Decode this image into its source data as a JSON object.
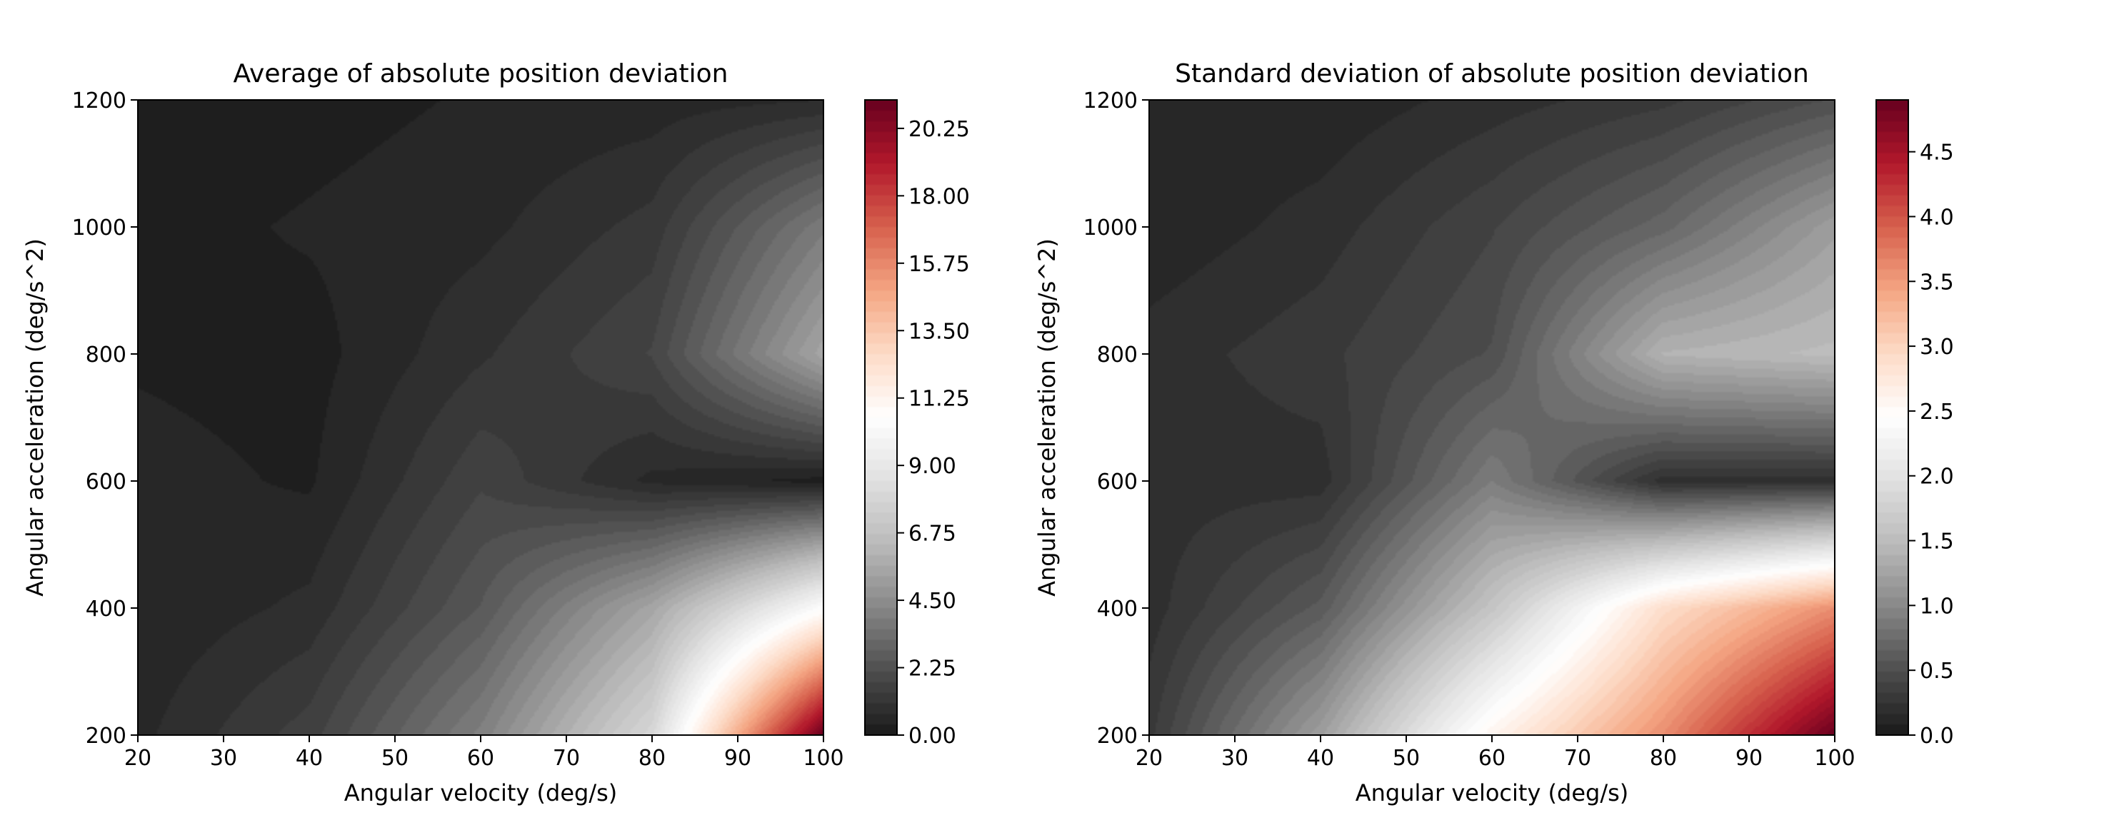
{
  "colormap": {
    "name": "RdGy_r",
    "stops": [
      "#1a1a1a",
      "#4d4d4d",
      "#878787",
      "#bababa",
      "#e0e0e0",
      "#ffffff",
      "#fddbc7",
      "#f4a582",
      "#d6604d",
      "#b2182b",
      "#67001f"
    ]
  },
  "chart_data": [
    {
      "type": "heatmap",
      "title": "Average of absolute position deviation",
      "xlabel": "Angular velocity (deg/s)",
      "ylabel": "Angular acceleration (deg/s^2)",
      "x": [
        20,
        40,
        60,
        80,
        100
      ],
      "y": [
        200,
        400,
        600,
        800,
        1000,
        1200
      ],
      "xlim": [
        20,
        100
      ],
      "ylim": [
        200,
        1200
      ],
      "xticks": [
        "20",
        "30",
        "40",
        "50",
        "60",
        "70",
        "80",
        "90",
        "100"
      ],
      "xtick_values": [
        20,
        30,
        40,
        50,
        60,
        70,
        80,
        90,
        100
      ],
      "yticks": [
        "200",
        "400",
        "600",
        "800",
        "1000",
        "1200"
      ],
      "ytick_values": [
        200,
        400,
        600,
        800,
        1000,
        1200
      ],
      "z": [
        [
          0.6,
          1.6,
          4.0,
          8.0,
          21.2
        ],
        [
          0.4,
          0.8,
          2.5,
          5.5,
          10.5
        ],
        [
          0.5,
          0.3,
          1.7,
          0.6,
          0.2
        ],
        [
          0.3,
          0.2,
          1.0,
          1.8,
          5.5
        ],
        [
          0.2,
          0.4,
          0.6,
          1.2,
          3.8
        ],
        [
          0.0,
          0.2,
          0.4,
          0.5,
          0.7
        ]
      ],
      "colorbar": {
        "min": 0.0,
        "max": 21.2,
        "ticks": [
          "0.00",
          "2.25",
          "4.50",
          "6.75",
          "9.00",
          "11.25",
          "13.50",
          "15.75",
          "18.00",
          "20.25"
        ],
        "tick_values": [
          0.0,
          2.25,
          4.5,
          6.75,
          9.0,
          11.25,
          13.5,
          15.75,
          18.0,
          20.25
        ]
      }
    },
    {
      "type": "heatmap",
      "title": "Standard deviation of absolute position deviation",
      "xlabel": "Angular velocity (deg/s)",
      "ylabel": "Angular acceleration (deg/s^2)",
      "x": [
        20,
        40,
        60,
        80,
        100
      ],
      "y": [
        200,
        400,
        600,
        800,
        1000,
        1200
      ],
      "xlim": [
        20,
        100
      ],
      "ylim": [
        200,
        1200
      ],
      "xticks": [
        "20",
        "30",
        "40",
        "50",
        "60",
        "70",
        "80",
        "90",
        "100"
      ],
      "xtick_values": [
        20,
        30,
        40,
        50,
        60,
        70,
        80,
        90,
        100
      ],
      "yticks": [
        "200",
        "400",
        "600",
        "800",
        "1000",
        "1200"
      ],
      "ytick_values": [
        200,
        400,
        600,
        800,
        1000,
        1200
      ],
      "z": [
        [
          0.3,
          1.2,
          2.6,
          3.6,
          4.9
        ],
        [
          0.2,
          0.6,
          1.6,
          2.9,
          3.6
        ],
        [
          0.2,
          0.2,
          0.9,
          0.2,
          0.2
        ],
        [
          0.2,
          0.3,
          0.5,
          1.4,
          1.5
        ],
        [
          0.1,
          0.2,
          0.4,
          0.7,
          1.2
        ],
        [
          0.1,
          0.1,
          0.2,
          0.3,
          0.5
        ]
      ],
      "colorbar": {
        "min": 0.0,
        "max": 4.9,
        "ticks": [
          "0.0",
          "0.5",
          "1.0",
          "1.5",
          "2.0",
          "2.5",
          "3.0",
          "3.5",
          "4.0",
          "4.5"
        ],
        "tick_values": [
          0.0,
          0.5,
          1.0,
          1.5,
          2.0,
          2.5,
          3.0,
          3.5,
          4.0,
          4.5
        ]
      }
    }
  ]
}
